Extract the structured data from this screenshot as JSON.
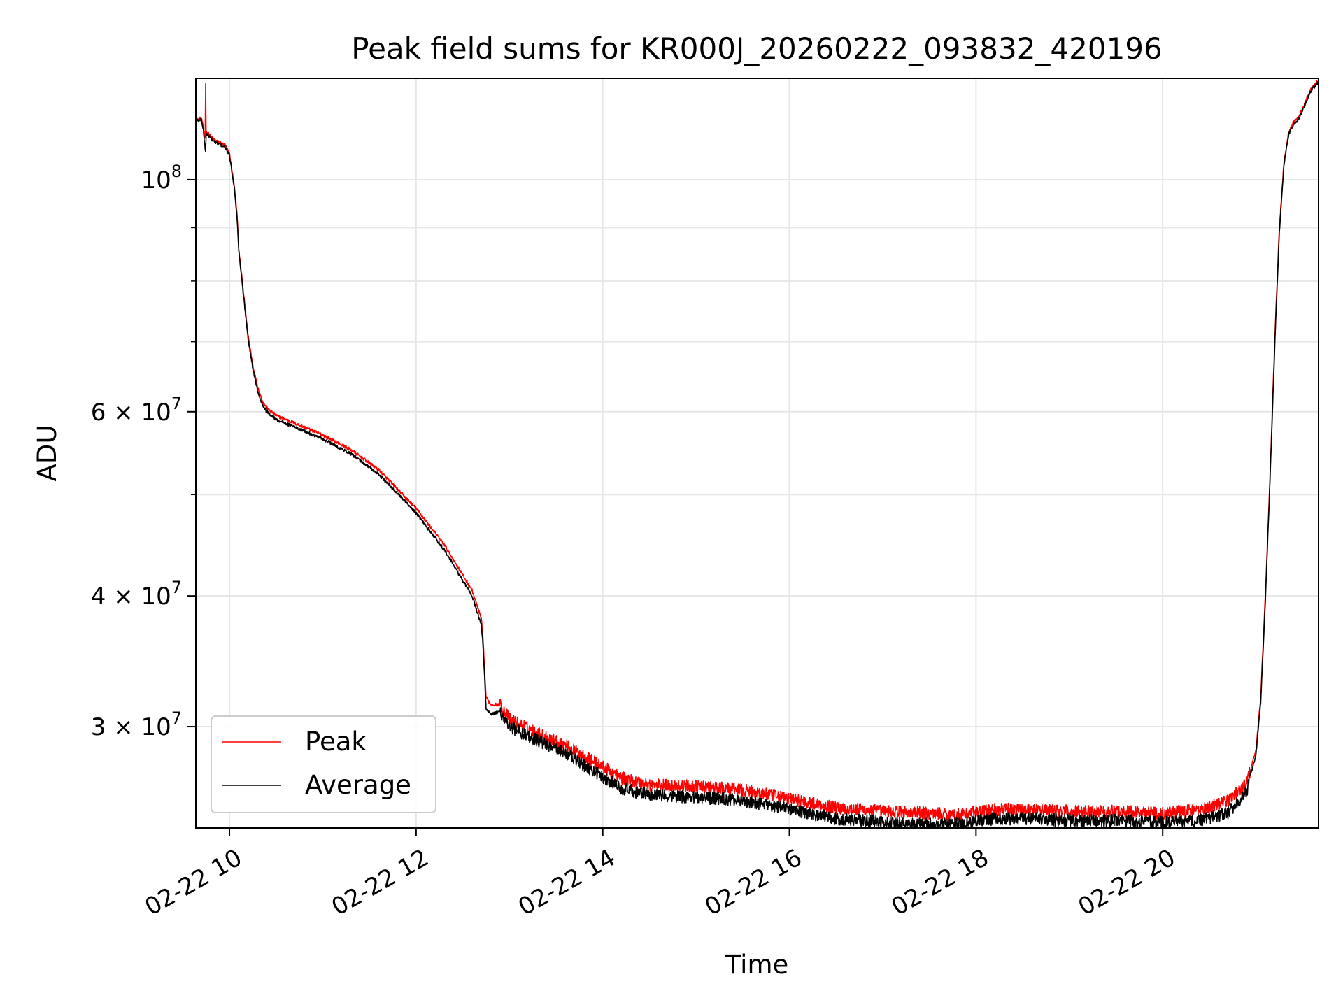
{
  "chart_data": {
    "type": "line",
    "title": "Peak field sums for KR000J_20260222_093832_420196",
    "xlabel": "Time",
    "ylabel": "ADU",
    "yscale": "log",
    "grid": true,
    "legend_position": "lower-left",
    "xlim_hours": [
      9.64,
      21.67
    ],
    "ylim": [
      24000000,
      125000000
    ],
    "x_ticks": [
      {
        "hour": 10,
        "label": "02-22 10"
      },
      {
        "hour": 12,
        "label": "02-22 12"
      },
      {
        "hour": 14,
        "label": "02-22 14"
      },
      {
        "hour": 16,
        "label": "02-22 16"
      },
      {
        "hour": 18,
        "label": "02-22 18"
      },
      {
        "hour": 20,
        "label": "02-22 20"
      }
    ],
    "y_ticks": [
      {
        "value": 100000000,
        "mantissa": "10",
        "exp": "8"
      },
      {
        "value": 60000000,
        "mantissa": "6 × 10",
        "exp": "7"
      },
      {
        "value": 40000000,
        "mantissa": "4 × 10",
        "exp": "7"
      },
      {
        "value": 30000000,
        "mantissa": "3 × 10",
        "exp": "7"
      }
    ],
    "y_minor_ticks": [
      90000000,
      80000000,
      70000000,
      50000000
    ],
    "series": [
      {
        "name": "Peak",
        "color": "#ff0000",
        "x_hours": [
          9.64,
          9.7,
          9.72,
          9.74,
          9.745,
          9.75,
          9.76,
          9.8,
          9.85,
          9.9,
          9.95,
          10.0,
          10.05,
          10.08,
          10.1,
          10.15,
          10.2,
          10.25,
          10.3,
          10.35,
          10.4,
          10.5,
          10.7,
          11.0,
          11.3,
          11.6,
          12.0,
          12.3,
          12.6,
          12.7,
          12.72,
          12.75,
          12.8,
          12.9,
          13.0,
          13.3,
          13.6,
          13.9,
          14.2,
          14.5,
          15.0,
          15.5,
          16.0,
          16.5,
          17.0,
          17.5,
          17.8,
          18.2,
          18.6,
          19.0,
          19.5,
          20.0,
          20.4,
          20.7,
          20.9,
          21.0,
          21.05,
          21.1,
          21.15,
          21.2,
          21.25,
          21.3,
          21.35,
          21.4,
          21.45,
          21.5,
          21.55,
          21.6,
          21.67
        ],
        "values": [
          114000000,
          114500000,
          112000000,
          109500000,
          124000000,
          111000000,
          111000000,
          110000000,
          109000000,
          108500000,
          108000000,
          106000000,
          99000000,
          93000000,
          86000000,
          78000000,
          71000000,
          66500000,
          63500000,
          61500000,
          60500000,
          59500000,
          58500000,
          57000000,
          55200000,
          52800000,
          48500000,
          44800000,
          40500000,
          38000000,
          36000000,
          32000000,
          31500000,
          31500000,
          30500000,
          29600000,
          28800000,
          27800000,
          26800000,
          26400000,
          26300000,
          26100000,
          25600000,
          25100000,
          24900000,
          24800000,
          24700000,
          25000000,
          25000000,
          24900000,
          24900000,
          24800000,
          25000000,
          25500000,
          26500000,
          28500000,
          32000000,
          40000000,
          52000000,
          70000000,
          90000000,
          104000000,
          111000000,
          113500000,
          114500000,
          117000000,
          120000000,
          122500000,
          124500000
        ]
      },
      {
        "name": "Average",
        "color": "#000000",
        "x_hours": [
          9.64,
          9.7,
          9.72,
          9.74,
          9.745,
          9.75,
          9.76,
          9.8,
          9.85,
          9.9,
          9.95,
          10.0,
          10.05,
          10.08,
          10.1,
          10.15,
          10.2,
          10.25,
          10.3,
          10.35,
          10.4,
          10.5,
          10.7,
          11.0,
          11.3,
          11.6,
          12.0,
          12.3,
          12.6,
          12.7,
          12.72,
          12.75,
          12.8,
          12.9,
          13.0,
          13.3,
          13.6,
          13.9,
          14.2,
          14.5,
          15.0,
          15.5,
          16.0,
          16.5,
          17.0,
          17.5,
          17.8,
          18.2,
          18.6,
          19.0,
          19.5,
          20.0,
          20.4,
          20.7,
          20.9,
          21.0,
          21.05,
          21.1,
          21.15,
          21.2,
          21.25,
          21.3,
          21.35,
          21.4,
          21.45,
          21.5,
          21.55,
          21.6,
          21.67
        ],
        "values": [
          113800000,
          114200000,
          111500000,
          107000000,
          106500000,
          110500000,
          110500000,
          109500000,
          108500000,
          108000000,
          107500000,
          105500000,
          98500000,
          92500000,
          85500000,
          77500000,
          70500000,
          66000000,
          63000000,
          61000000,
          60000000,
          59000000,
          58000000,
          56500000,
          54700000,
          52300000,
          48000000,
          44300000,
          40000000,
          37500000,
          35500000,
          31200000,
          30800000,
          31000000,
          30000000,
          29100000,
          28300000,
          27200000,
          26200000,
          25800000,
          25700000,
          25500000,
          25000000,
          24500000,
          24300000,
          24200000,
          24200000,
          24500000,
          24500000,
          24400000,
          24400000,
          24300000,
          24400000,
          24800000,
          26000000,
          28200000,
          31600000,
          39500000,
          51500000,
          69000000,
          89000000,
          103500000,
          110500000,
          113000000,
          114000000,
          116500000,
          119500000,
          122000000,
          124000000
        ]
      }
    ]
  }
}
